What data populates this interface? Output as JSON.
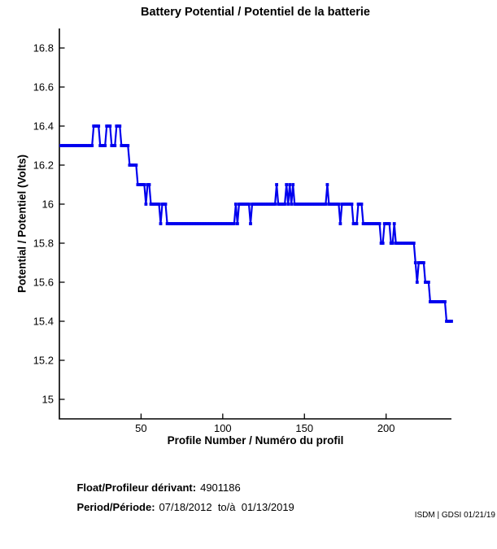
{
  "chart_data": {
    "type": "line",
    "title": "Battery Potential / Potentiel de la batterie",
    "xlabel": "Profile Number / Numéro du profil",
    "ylabel": "Potential / Potentiel (Volts)",
    "xlim": [
      0,
      240
    ],
    "ylim": [
      14.9,
      16.9
    ],
    "grid": false,
    "legend": "none",
    "x_ticks": [
      {
        "value": 50,
        "label": "50"
      },
      {
        "value": 100,
        "label": "100"
      },
      {
        "value": 150,
        "label": "150"
      },
      {
        "value": 200,
        "label": "200"
      }
    ],
    "y_ticks": [
      {
        "value": 16.8,
        "label": "16.8"
      },
      {
        "value": 16.6,
        "label": "16.6"
      },
      {
        "value": 16.4,
        "label": "16.4"
      },
      {
        "value": 16.2,
        "label": "16.2"
      },
      {
        "value": 16.0,
        "label": "16"
      },
      {
        "value": 15.8,
        "label": "15.8"
      },
      {
        "value": 15.6,
        "label": "15.6"
      },
      {
        "value": 15.4,
        "label": "15.4"
      },
      {
        "value": 15.2,
        "label": "15.2"
      },
      {
        "value": 15.0,
        "label": "15"
      }
    ],
    "line_color": "#0000EE",
    "axis_color": "#000000",
    "marker": "dot",
    "series": [
      {
        "name": "battery-potential-volts",
        "x_unit": "profile-number",
        "runs_profile_start_end_value": [
          [
            1,
            20,
            16.3
          ],
          [
            21,
            24,
            16.4
          ],
          [
            25,
            28,
            16.3
          ],
          [
            29,
            31,
            16.4
          ],
          [
            32,
            34,
            16.3
          ],
          [
            35,
            37,
            16.4
          ],
          [
            38,
            42,
            16.3
          ],
          [
            43,
            47,
            16.2
          ],
          [
            48,
            52,
            16.1
          ],
          [
            53,
            53,
            16.0
          ],
          [
            54,
            55,
            16.1
          ],
          [
            56,
            61,
            16.0
          ],
          [
            62,
            62,
            15.9
          ],
          [
            63,
            65,
            16.0
          ],
          [
            66,
            107,
            15.9
          ],
          [
            108,
            108,
            16.0
          ],
          [
            109,
            109,
            15.9
          ],
          [
            110,
            116,
            16.0
          ],
          [
            117,
            117,
            15.9
          ],
          [
            118,
            132,
            16.0
          ],
          [
            133,
            133,
            16.1
          ],
          [
            134,
            138,
            16.0
          ],
          [
            139,
            139,
            16.1
          ],
          [
            140,
            140,
            16.0
          ],
          [
            141,
            141,
            16.1
          ],
          [
            142,
            142,
            16.0
          ],
          [
            143,
            143,
            16.1
          ],
          [
            144,
            163,
            16.0
          ],
          [
            164,
            164,
            16.1
          ],
          [
            165,
            171,
            16.0
          ],
          [
            172,
            172,
            15.9
          ],
          [
            173,
            179,
            16.0
          ],
          [
            180,
            182,
            15.9
          ],
          [
            183,
            185,
            16.0
          ],
          [
            186,
            196,
            15.9
          ],
          [
            197,
            198,
            15.8
          ],
          [
            199,
            202,
            15.9
          ],
          [
            203,
            204,
            15.8
          ],
          [
            205,
            205,
            15.9
          ],
          [
            206,
            217,
            15.8
          ],
          [
            218,
            218,
            15.7
          ],
          [
            219,
            219,
            15.6
          ],
          [
            220,
            223,
            15.7
          ],
          [
            224,
            226,
            15.6
          ],
          [
            227,
            236,
            15.5
          ],
          [
            237,
            240,
            15.4
          ]
        ]
      }
    ]
  },
  "footer": {
    "float_label": "Float/Profileur dérivant:",
    "float_value": "4901186",
    "period_label": "Period/Période:",
    "period_value": "07/18/2012  to/à  01/13/2019",
    "credit": "ISDM | GDSI 01/21/19"
  }
}
